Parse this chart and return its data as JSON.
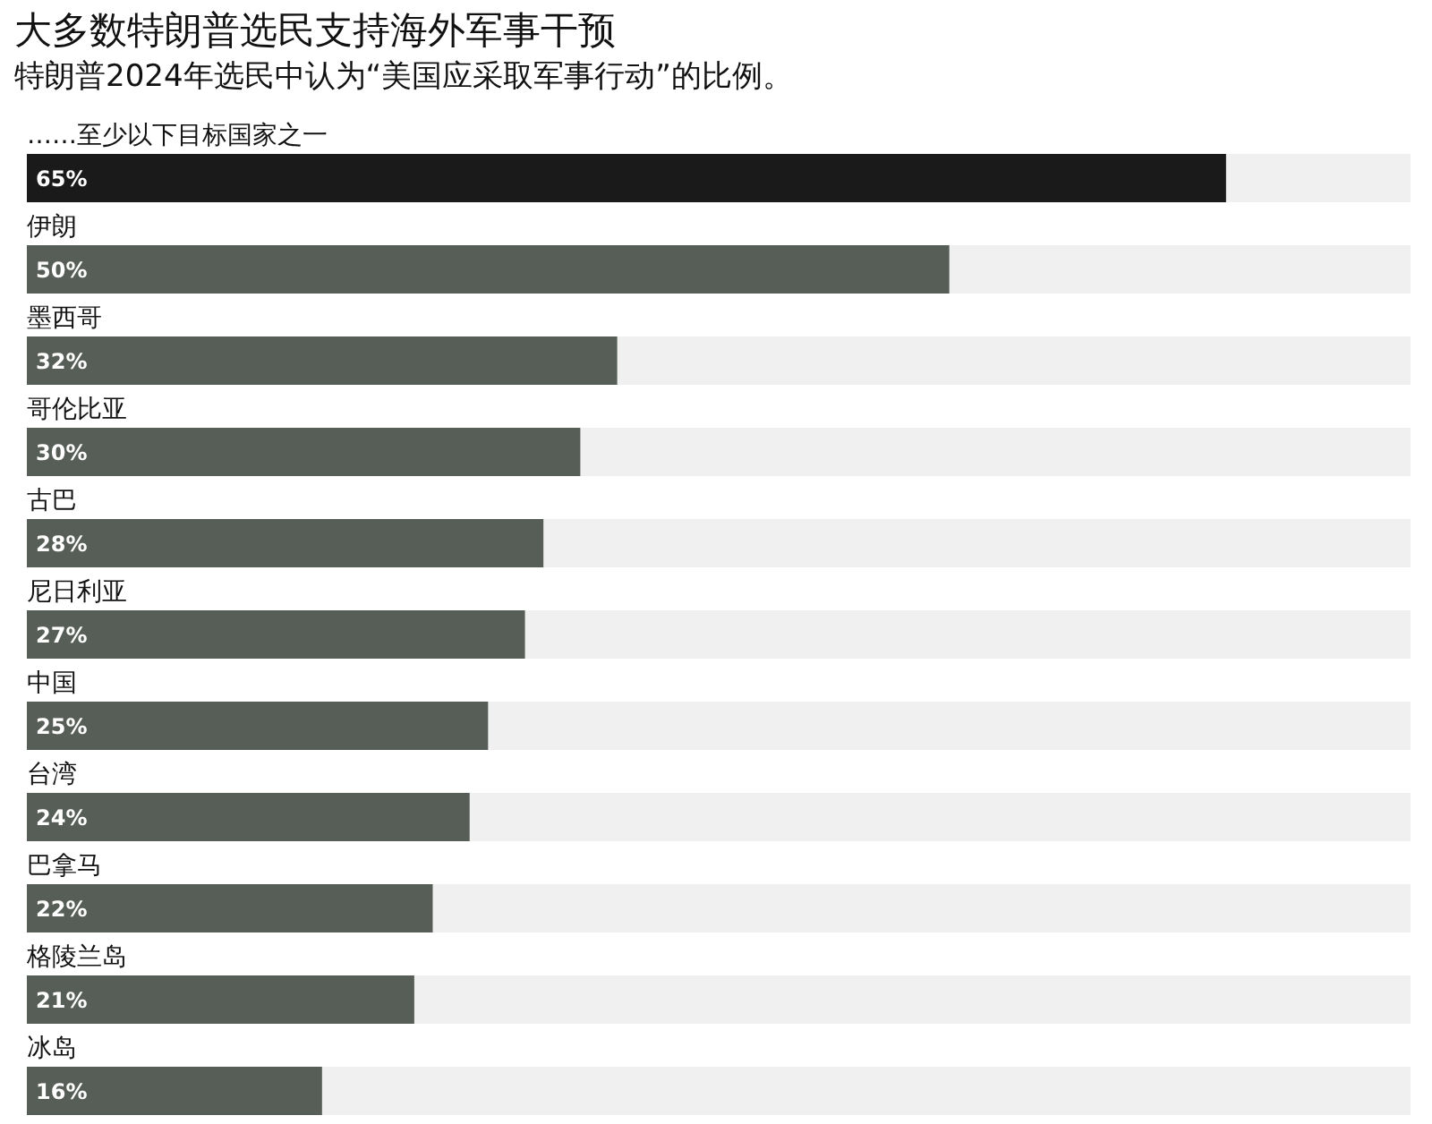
{
  "chart_data": {
    "type": "bar",
    "orientation": "horizontal",
    "title": "大多数特朗普选民支持海外军事干预",
    "subtitle": "特朗普2024年选民中认为“美国应采取军事行动”的比例。",
    "categories": [
      "……至少以下目标国家之一",
      "伊朗",
      "墨西哥",
      "哥伦比亚",
      "古巴",
      "尼日利亚",
      "中国",
      "台湾",
      "巴拿马",
      "格陵兰岛",
      "冰岛"
    ],
    "values": [
      65,
      50,
      32,
      30,
      28,
      27,
      25,
      24,
      22,
      21,
      16
    ],
    "colors": [
      "#1a1a1a",
      "#575e57",
      "#575e57",
      "#575e57",
      "#575e57",
      "#575e57",
      "#575e57",
      "#575e57",
      "#575e57",
      "#575e57",
      "#575e57"
    ],
    "xlim": [
      0,
      75
    ],
    "value_labels": [
      "65%",
      "50%",
      "32%",
      "30%",
      "28%",
      "27%",
      "25%",
      "24%",
      "22%",
      "21%",
      "16%"
    ]
  }
}
